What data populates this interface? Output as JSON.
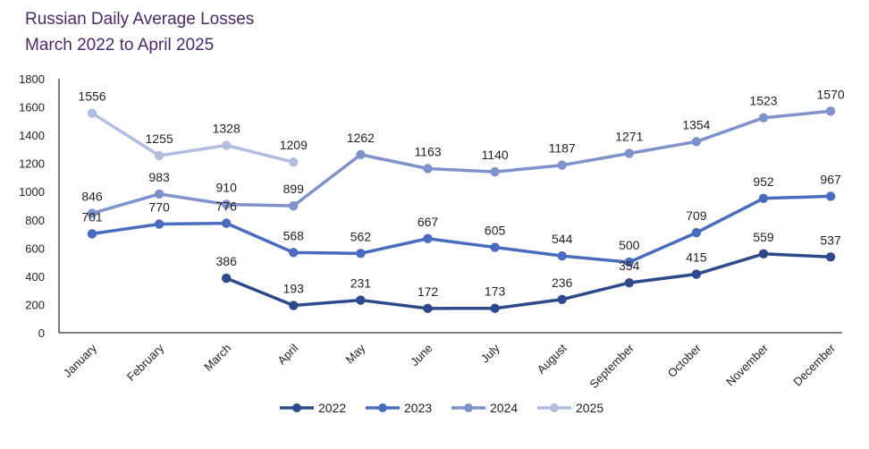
{
  "chart_data": {
    "type": "line",
    "title": "Russian Daily Average Losses",
    "subtitle": "March 2022 to April 2025",
    "categories": [
      "January",
      "February",
      "March",
      "April",
      "May",
      "June",
      "July",
      "August",
      "September",
      "October",
      "November",
      "December"
    ],
    "ylim": [
      0,
      1800
    ],
    "yticks": [
      0,
      200,
      400,
      600,
      800,
      1000,
      1200,
      1400,
      1600,
      1800
    ],
    "grid": false,
    "legend_position": "bottom",
    "series": [
      {
        "name": "2022",
        "color": "#2e4a8c",
        "values": [
          null,
          null,
          386,
          193,
          231,
          172,
          173,
          236,
          354,
          415,
          559,
          537
        ]
      },
      {
        "name": "2023",
        "color": "#4a6cbf",
        "values": [
          701,
          770,
          776,
          568,
          562,
          667,
          605,
          544,
          500,
          709,
          952,
          967
        ]
      },
      {
        "name": "2024",
        "color": "#7f92cc",
        "values": [
          846,
          983,
          910,
          899,
          1262,
          1163,
          1140,
          1187,
          1271,
          1354,
          1523,
          1570
        ]
      },
      {
        "name": "2025",
        "color": "#b3bde0",
        "values": [
          1556,
          1255,
          1328,
          1209,
          null,
          null,
          null,
          null,
          null,
          null,
          null,
          null
        ]
      }
    ]
  }
}
